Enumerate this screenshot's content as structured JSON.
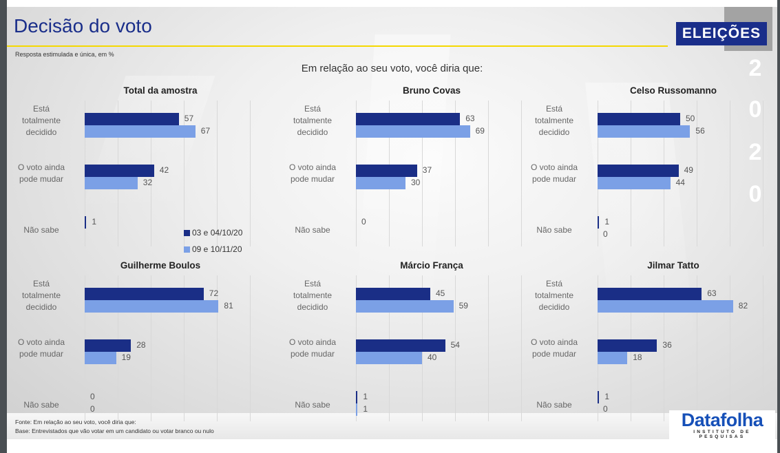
{
  "header": {
    "title": "Decisão do voto",
    "subtitle": "Resposta estimulada e única, em %",
    "question": "Em relação ao seu voto, você diria que:",
    "badge": "ELEIÇÕES",
    "year_digits": [
      "2",
      "0",
      "2",
      "0"
    ]
  },
  "footer": {
    "source": "Fonte: Em relação ao seu voto, você diria que:",
    "base": "Base: Entrevistados que vão votar em um candidato ou votar branco ou nulo"
  },
  "logo": {
    "name": "Datafolha",
    "tagline": "INSTITUTO DE PESQUISAS"
  },
  "colors": {
    "title": "#1a2e8a",
    "series_1": "#1a2e86",
    "series_2": "#7ba0e6",
    "accent_line": "#f5d800"
  },
  "chart_data": {
    "type": "bar",
    "orientation": "horizontal",
    "xlim": [
      0,
      100
    ],
    "grid": true,
    "legend": {
      "entries": [
        "03 e 04/10/20",
        "09 e 10/11/20"
      ],
      "placement": "inside first panel, bottom-right"
    },
    "categories": [
      "Está totalmente decidido",
      "O voto ainda pode mudar",
      "Não sabe"
    ],
    "category_lines": [
      [
        "Está",
        "totalmente",
        "decidido"
      ],
      [
        "O voto ainda",
        "pode mudar"
      ],
      [
        "Não sabe"
      ]
    ],
    "panels": [
      {
        "title": "Total da amostra",
        "series": [
          {
            "name": "03 e 04/10/20",
            "values": [
              57,
              42,
              1
            ],
            "labels": [
              "57",
              "42",
              "1"
            ]
          },
          {
            "name": "09 e 10/11/20",
            "values": [
              67,
              32,
              0
            ],
            "labels": [
              "67",
              "32",
              ""
            ]
          }
        ]
      },
      {
        "title": "Bruno Covas",
        "series": [
          {
            "name": "03 e 04/10/20",
            "values": [
              63,
              37,
              0
            ],
            "labels": [
              "63",
              "37",
              "0"
            ]
          },
          {
            "name": "09 e 10/11/20",
            "values": [
              69,
              30,
              0
            ],
            "labels": [
              "69",
              "30",
              ""
            ]
          }
        ]
      },
      {
        "title": "Celso Russomanno",
        "series": [
          {
            "name": "03 e 04/10/20",
            "values": [
              50,
              49,
              1
            ],
            "labels": [
              "50",
              "49",
              "1"
            ]
          },
          {
            "name": "09 e 10/11/20",
            "values": [
              56,
              44,
              0
            ],
            "labels": [
              "56",
              "44",
              "0"
            ]
          }
        ]
      },
      {
        "title": "Guilherme Boulos",
        "series": [
          {
            "name": "03 e 04/10/20",
            "values": [
              72,
              28,
              0
            ],
            "labels": [
              "72",
              "28",
              "0"
            ]
          },
          {
            "name": "09 e 10/11/20",
            "values": [
              81,
              19,
              0
            ],
            "labels": [
              "81",
              "19",
              "0"
            ]
          }
        ]
      },
      {
        "title": "Márcio França",
        "series": [
          {
            "name": "03 e 04/10/20",
            "values": [
              45,
              54,
              1
            ],
            "labels": [
              "45",
              "54",
              "1"
            ]
          },
          {
            "name": "09 e 10/11/20",
            "values": [
              59,
              40,
              1
            ],
            "labels": [
              "59",
              "40",
              "1"
            ]
          }
        ]
      },
      {
        "title": "Jilmar Tatto",
        "series": [
          {
            "name": "03 e 04/10/20",
            "values": [
              63,
              36,
              1
            ],
            "labels": [
              "63",
              "36",
              "1"
            ]
          },
          {
            "name": "09 e 10/11/20",
            "values": [
              82,
              18,
              0
            ],
            "labels": [
              "82",
              "18",
              "0"
            ]
          }
        ]
      }
    ]
  }
}
